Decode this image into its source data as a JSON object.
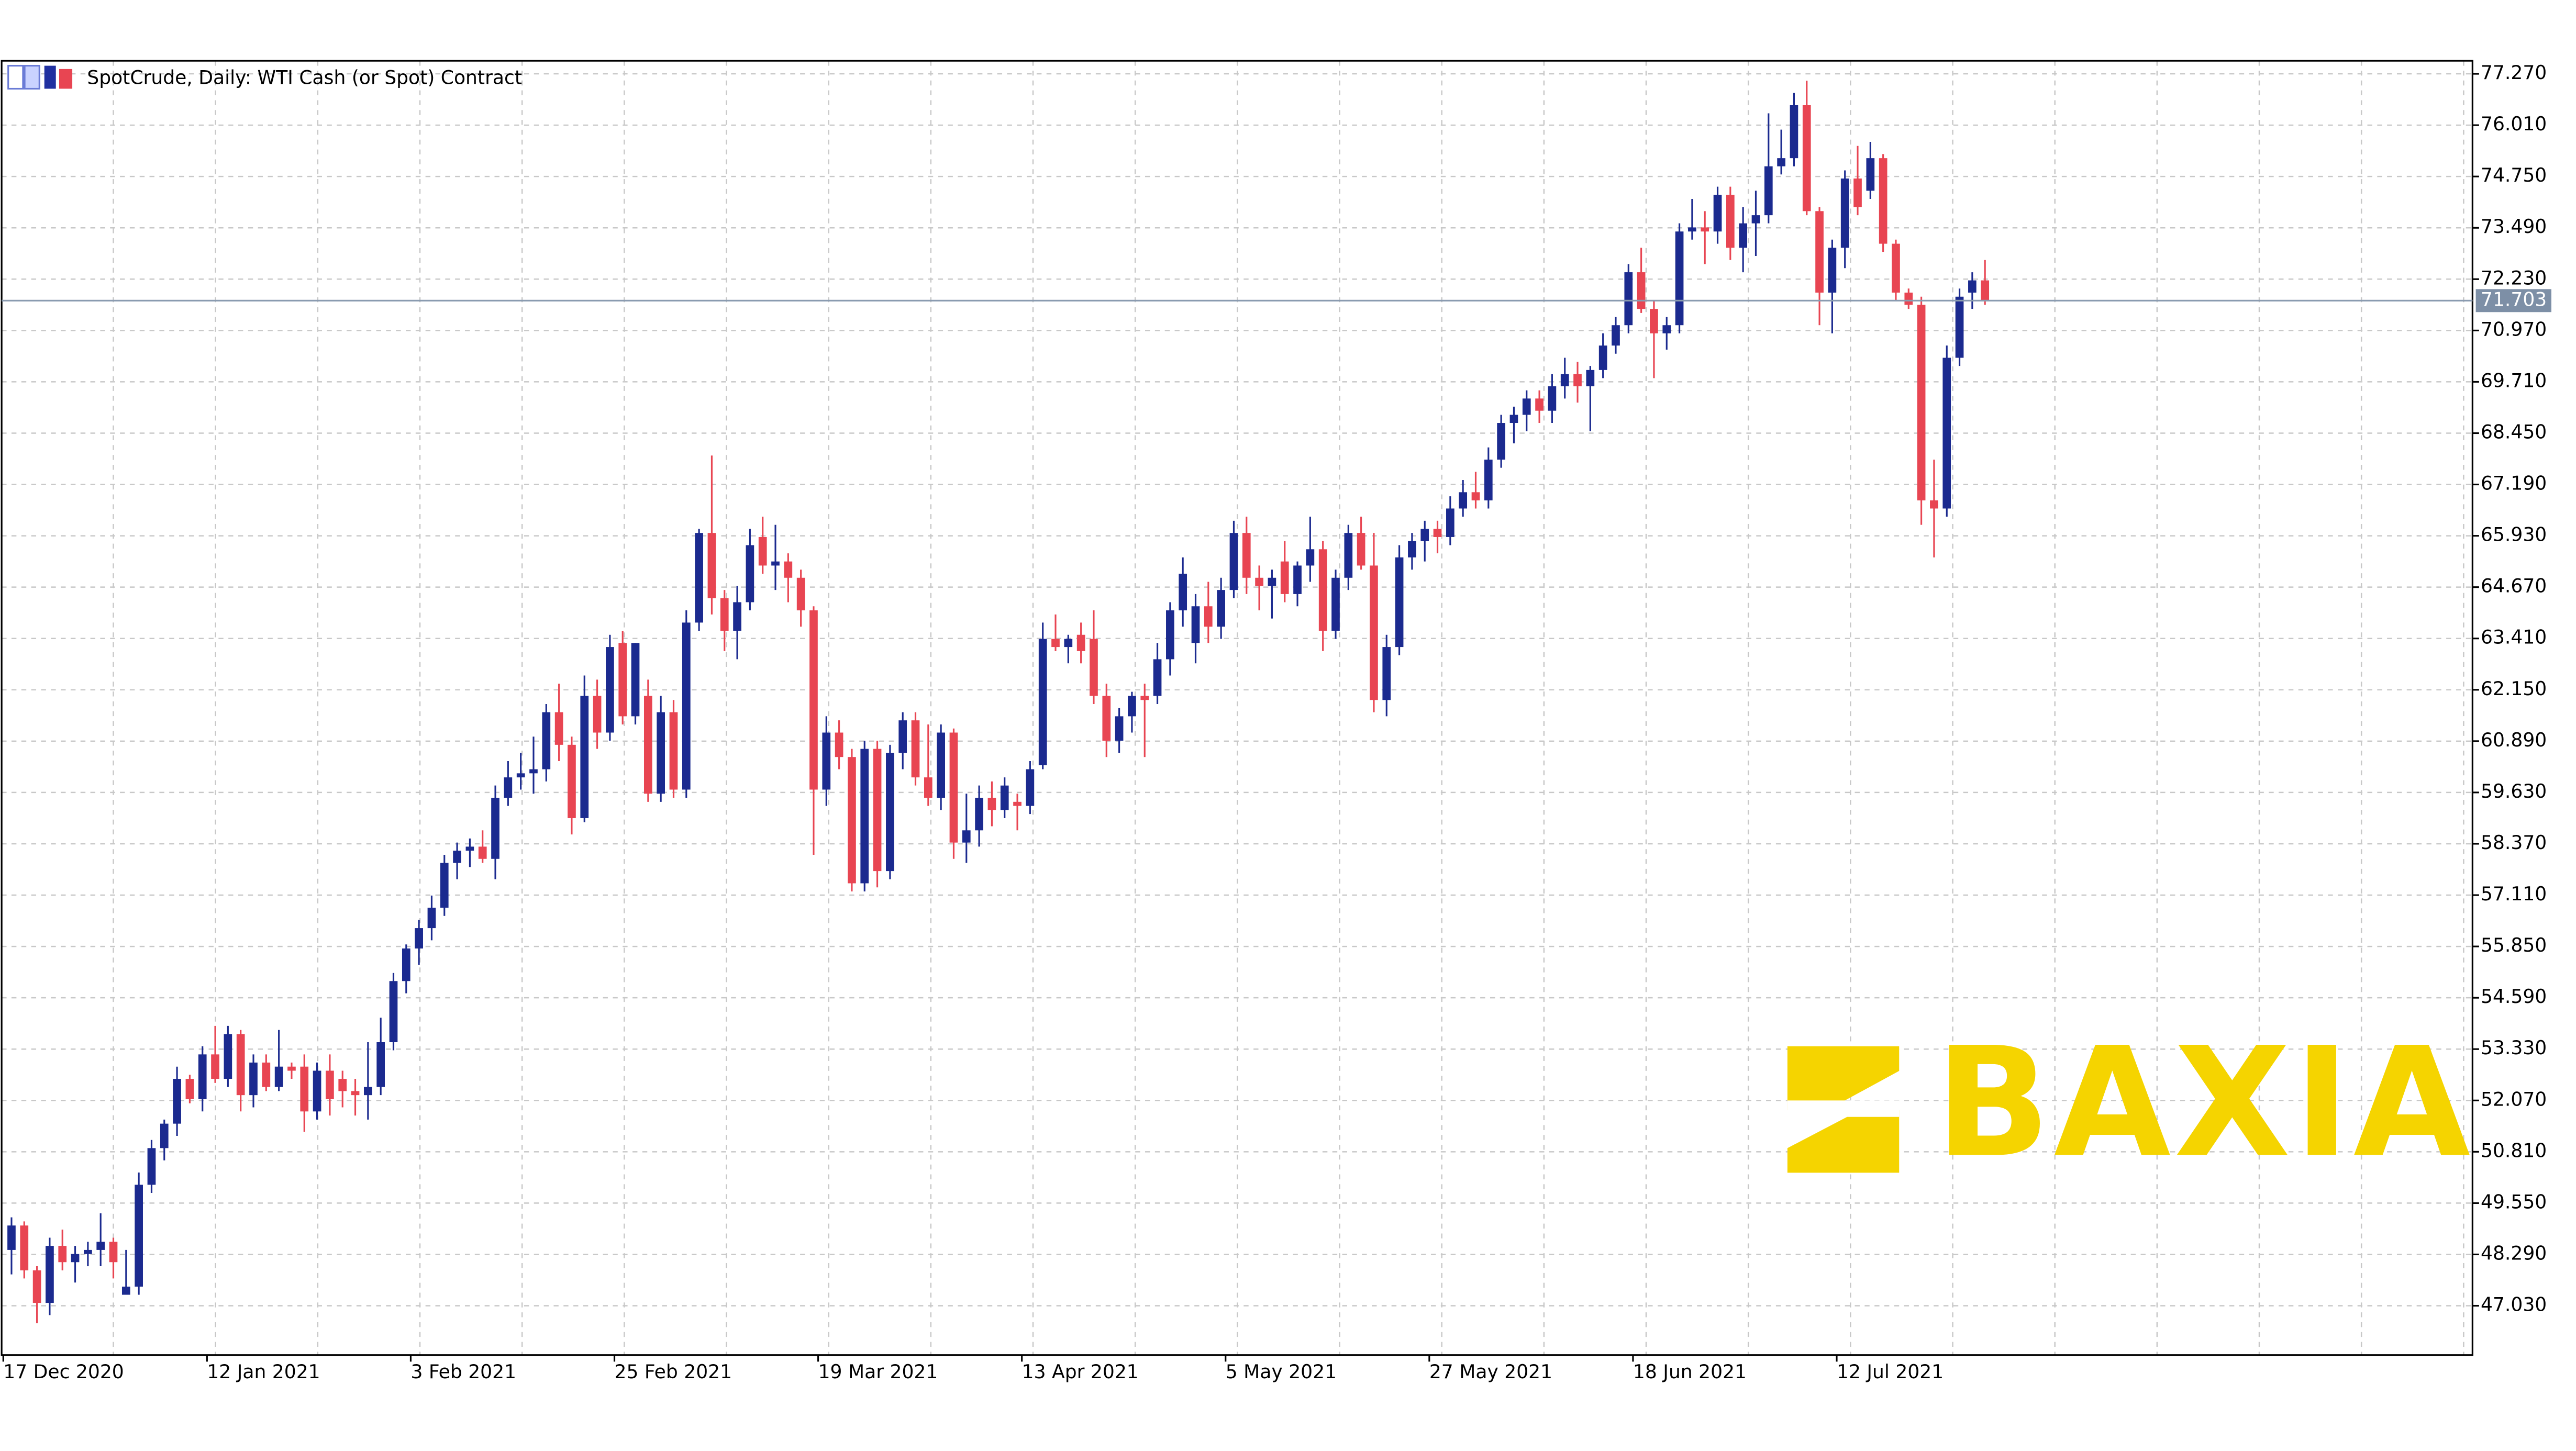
{
  "chart_data": {
    "type": "candlestick",
    "title": "SpotCrude, Daily:  WTI Cash (or Spot) Contract",
    "watermark": "BAXIA",
    "categories": [
      "17 Dec 2020",
      null,
      null,
      null,
      null,
      null,
      null,
      null,
      null,
      null,
      null,
      null,
      null,
      null,
      null,
      null,
      "12 Jan 2021",
      null,
      null,
      null,
      null,
      null,
      null,
      null,
      null,
      null,
      null,
      null,
      null,
      null,
      null,
      null,
      "3 Feb 2021",
      null,
      null,
      null,
      null,
      null,
      null,
      null,
      null,
      null,
      null,
      null,
      null,
      null,
      null,
      null,
      "25 Feb 2021",
      null,
      null,
      null,
      null,
      null,
      null,
      null,
      null,
      null,
      null,
      null,
      null,
      null,
      null,
      null,
      "19 Mar 2021",
      null,
      null,
      null,
      null,
      null,
      null,
      null,
      null,
      null,
      null,
      null,
      null,
      null,
      null,
      null,
      "13 Apr 2021",
      null,
      null,
      null,
      null,
      null,
      null,
      null,
      null,
      null,
      null,
      null,
      null,
      null,
      null,
      null,
      "5 May 2021",
      null,
      null,
      null,
      null,
      null,
      null,
      null,
      null,
      null,
      null,
      null,
      null,
      null,
      null,
      null,
      "27 May 2021",
      null,
      null,
      null,
      null,
      null,
      null,
      null,
      null,
      null,
      null,
      null,
      null,
      null,
      null,
      null,
      "18 Jun 2021",
      null,
      null,
      null,
      null,
      null,
      null,
      null,
      null,
      null,
      null,
      null,
      null,
      null,
      null,
      null,
      "12 Jul 2021",
      null,
      null,
      null,
      null,
      null,
      null,
      null,
      null,
      null,
      null,
      null
    ],
    "open": [
      48.4,
      49.0,
      47.9,
      47.1,
      48.5,
      48.1,
      48.3,
      48.4,
      48.6,
      47.3,
      47.5,
      50.0,
      50.9,
      51.5,
      52.6,
      52.1,
      53.2,
      52.6,
      53.7,
      52.2,
      53.0,
      52.4,
      52.9,
      52.9,
      51.8,
      52.8,
      52.6,
      52.3,
      52.2,
      52.4,
      53.5,
      55.0,
      55.8,
      56.3,
      56.8,
      57.9,
      58.2,
      58.3,
      58.0,
      59.5,
      60.0,
      60.1,
      60.2,
      61.6,
      60.8,
      59.0,
      62.0,
      61.1,
      63.3,
      61.5,
      62.0,
      59.6,
      61.6,
      59.7,
      63.8,
      66.0,
      64.4,
      63.6,
      64.3,
      65.9,
      65.2,
      65.3,
      64.9,
      64.1,
      59.7,
      61.1,
      60.5,
      57.4,
      60.7,
      57.7,
      60.6,
      61.4,
      60.0,
      59.5,
      61.1,
      58.4,
      58.7,
      59.5,
      59.2,
      59.4,
      59.3,
      60.3,
      63.4,
      63.2,
      63.5,
      63.4,
      62.0,
      60.9,
      61.5,
      62.0,
      62.0,
      62.9,
      64.1,
      63.3,
      64.2,
      63.7,
      64.6,
      66.0,
      64.9,
      64.7,
      65.3,
      64.5,
      65.2,
      65.6,
      63.6,
      64.9,
      66.0,
      65.2,
      61.9,
      63.2,
      65.4,
      65.8,
      66.1,
      65.9,
      66.6,
      67.0,
      66.8,
      67.8,
      68.7,
      68.9,
      69.3,
      69.0,
      69.6,
      69.9,
      69.6,
      70.0,
      70.6,
      71.1,
      72.4,
      71.5,
      70.9,
      71.1,
      73.4,
      73.5,
      73.4,
      74.3,
      73.0,
      73.6,
      73.8,
      75.0,
      75.2,
      76.5,
      73.9,
      71.9,
      73.0,
      74.7,
      74.4,
      75.2,
      73.1,
      71.9,
      71.6,
      66.8,
      66.6,
      70.3,
      71.9,
      72.2
    ],
    "high": [
      49.2,
      49.1,
      48.0,
      48.7,
      48.9,
      48.5,
      48.6,
      49.3,
      48.7,
      48.4,
      50.3,
      51.1,
      51.6,
      52.9,
      52.7,
      53.4,
      53.9,
      53.9,
      53.8,
      53.2,
      53.2,
      53.8,
      53.0,
      53.2,
      53.0,
      53.2,
      52.8,
      52.6,
      53.5,
      54.1,
      55.2,
      55.9,
      56.5,
      57.1,
      58.1,
      58.4,
      58.5,
      58.7,
      59.8,
      60.4,
      60.6,
      61.0,
      61.8,
      62.3,
      61.0,
      62.5,
      62.4,
      63.5,
      63.6,
      63.3,
      62.4,
      62.0,
      61.9,
      64.1,
      66.1,
      67.9,
      64.6,
      64.7,
      66.1,
      66.4,
      66.2,
      65.5,
      65.1,
      64.2,
      61.5,
      61.4,
      60.7,
      60.9,
      60.9,
      60.8,
      61.6,
      61.6,
      61.3,
      61.3,
      61.2,
      59.6,
      59.8,
      59.9,
      60.0,
      59.6,
      60.4,
      63.8,
      64.0,
      63.5,
      63.8,
      64.1,
      62.3,
      61.7,
      62.1,
      62.3,
      63.3,
      64.3,
      65.4,
      64.5,
      64.8,
      64.9,
      66.3,
      66.4,
      65.2,
      65.1,
      65.8,
      65.3,
      66.4,
      65.8,
      65.1,
      66.2,
      66.4,
      66.0,
      63.5,
      65.7,
      66.0,
      66.3,
      66.3,
      66.9,
      67.3,
      67.5,
      68.1,
      68.9,
      69.1,
      69.5,
      69.5,
      69.9,
      70.3,
      70.2,
      70.1,
      70.9,
      71.3,
      72.6,
      73.0,
      71.7,
      71.3,
      73.6,
      74.2,
      73.9,
      74.5,
      74.5,
      74.0,
      74.4,
      76.3,
      75.9,
      76.8,
      77.1,
      74.0,
      73.2,
      74.9,
      75.5,
      75.6,
      75.3,
      73.2,
      72.0,
      71.8,
      67.8,
      70.6,
      72.0,
      72.4,
      72.7
    ],
    "low": [
      47.8,
      47.7,
      46.6,
      46.8,
      47.9,
      47.6,
      48.0,
      48.0,
      47.7,
      47.3,
      47.3,
      49.8,
      50.6,
      51.2,
      52.0,
      51.8,
      52.5,
      52.4,
      51.8,
      51.9,
      52.3,
      52.3,
      52.6,
      51.3,
      51.6,
      51.7,
      51.9,
      51.7,
      51.6,
      52.2,
      53.3,
      54.7,
      55.4,
      56.0,
      56.6,
      57.5,
      57.8,
      57.9,
      57.5,
      59.3,
      59.7,
      59.6,
      59.9,
      60.4,
      58.6,
      58.9,
      60.7,
      60.9,
      61.3,
      61.3,
      59.4,
      59.4,
      59.5,
      59.5,
      63.6,
      64.0,
      63.1,
      62.9,
      64.1,
      65.0,
      64.6,
      64.3,
      63.7,
      58.1,
      59.3,
      60.2,
      57.2,
      57.2,
      57.3,
      57.5,
      60.2,
      59.8,
      59.3,
      59.2,
      58.0,
      57.9,
      58.3,
      58.8,
      59.0,
      58.7,
      59.1,
      60.2,
      63.1,
      62.8,
      62.8,
      61.8,
      60.5,
      60.6,
      61.1,
      60.5,
      61.8,
      62.5,
      63.7,
      62.8,
      63.3,
      63.4,
      64.4,
      64.5,
      64.1,
      63.9,
      64.3,
      64.2,
      64.8,
      63.1,
      63.4,
      64.6,
      65.1,
      61.6,
      61.5,
      63.0,
      65.1,
      65.3,
      65.5,
      65.7,
      66.4,
      66.6,
      66.6,
      67.6,
      68.2,
      68.5,
      68.7,
      68.7,
      69.3,
      69.2,
      68.5,
      69.8,
      70.4,
      70.9,
      71.4,
      69.8,
      70.5,
      70.9,
      73.2,
      72.6,
      73.1,
      72.7,
      72.4,
      72.8,
      73.6,
      74.8,
      75.0,
      73.8,
      71.1,
      70.9,
      72.5,
      73.8,
      74.2,
      72.9,
      71.7,
      71.5,
      66.2,
      65.4,
      66.4,
      70.1,
      71.5,
      71.6
    ],
    "close": [
      49.0,
      47.9,
      47.1,
      48.5,
      48.1,
      48.3,
      48.4,
      48.6,
      48.1,
      47.5,
      50.0,
      50.9,
      51.5,
      52.6,
      52.1,
      53.2,
      52.6,
      53.7,
      52.2,
      53.0,
      52.4,
      52.9,
      52.8,
      51.8,
      52.8,
      52.1,
      52.3,
      52.2,
      52.4,
      53.5,
      55.0,
      55.8,
      56.3,
      56.8,
      57.9,
      58.2,
      58.3,
      58.0,
      59.5,
      60.0,
      60.1,
      60.2,
      61.6,
      60.8,
      59.0,
      62.0,
      61.1,
      63.2,
      61.5,
      63.3,
      59.6,
      61.6,
      59.7,
      63.8,
      66.0,
      64.4,
      63.6,
      64.3,
      65.7,
      65.2,
      65.3,
      64.9,
      64.1,
      59.7,
      61.1,
      60.5,
      57.4,
      60.7,
      57.7,
      60.6,
      61.4,
      60.0,
      59.5,
      61.1,
      58.4,
      58.7,
      59.5,
      59.2,
      59.8,
      59.3,
      60.2,
      63.4,
      63.2,
      63.4,
      63.1,
      62.0,
      60.9,
      61.5,
      62.0,
      61.9,
      62.9,
      64.1,
      65.0,
      64.2,
      63.7,
      64.6,
      66.0,
      64.9,
      64.7,
      64.9,
      64.5,
      65.2,
      65.6,
      63.6,
      64.9,
      66.0,
      65.2,
      61.9,
      63.2,
      65.4,
      65.8,
      66.1,
      65.9,
      66.6,
      67.0,
      66.8,
      67.8,
      68.7,
      68.9,
      69.3,
      69.0,
      69.6,
      69.9,
      69.6,
      70.0,
      70.6,
      71.1,
      72.4,
      71.5,
      70.9,
      71.1,
      73.4,
      73.5,
      73.4,
      74.3,
      73.0,
      73.6,
      73.8,
      75.0,
      75.2,
      76.5,
      73.9,
      71.9,
      73.0,
      74.7,
      74.0,
      75.2,
      73.1,
      71.9,
      71.6,
      66.8,
      66.6,
      70.3,
      71.8,
      72.2,
      71.7
    ],
    "up_color": "#1b2a8f",
    "down_color": "#e84552",
    "current_price": 71.703,
    "ylim": [
      45.82,
      77.59
    ],
    "yticks": [
      {
        "value": 77.27,
        "label": "77.270"
      },
      {
        "value": 76.01,
        "label": "76.010"
      },
      {
        "value": 74.75,
        "label": "74.750"
      },
      {
        "value": 73.49,
        "label": "73.490"
      },
      {
        "value": 72.23,
        "label": "72.230"
      },
      {
        "value": 70.97,
        "label": "70.970"
      },
      {
        "value": 69.71,
        "label": "69.710"
      },
      {
        "value": 68.45,
        "label": "68.450"
      },
      {
        "value": 67.19,
        "label": "67.190"
      },
      {
        "value": 65.93,
        "label": "65.930"
      },
      {
        "value": 64.67,
        "label": "64.670"
      },
      {
        "value": 63.41,
        "label": "63.410"
      },
      {
        "value": 62.15,
        "label": "62.150"
      },
      {
        "value": 60.89,
        "label": "60.890"
      },
      {
        "value": 59.63,
        "label": "59.630"
      },
      {
        "value": 58.37,
        "label": "58.370"
      },
      {
        "value": 57.11,
        "label": "57.110"
      },
      {
        "value": 55.85,
        "label": "55.850"
      },
      {
        "value": 54.59,
        "label": "54.590"
      },
      {
        "value": 53.33,
        "label": "53.330"
      },
      {
        "value": 52.07,
        "label": "52.070"
      },
      {
        "value": 50.81,
        "label": "50.810"
      },
      {
        "value": 49.55,
        "label": "49.550"
      },
      {
        "value": 48.29,
        "label": "48.290"
      },
      {
        "value": 47.03,
        "label": "47.030"
      }
    ],
    "grid": true
  }
}
